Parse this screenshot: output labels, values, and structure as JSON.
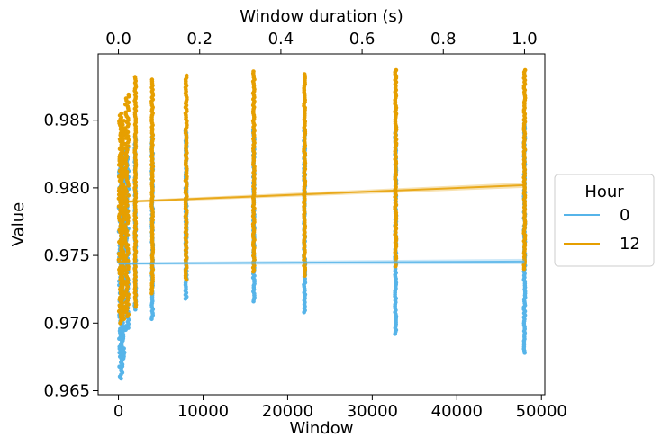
{
  "chart_data": {
    "type": "scatter",
    "title": "",
    "xlabel": "Window",
    "ylabel": "Value",
    "top_xlabel": "Window duration (s)",
    "xlim": [
      -2400,
      50400
    ],
    "ylim": [
      0.9647,
      0.9899
    ],
    "top_xlim": [
      -0.05,
      1.05
    ],
    "x_ticks": [
      0,
      10000,
      20000,
      30000,
      40000,
      50000
    ],
    "x_tick_labels": [
      "0",
      "10000",
      "20000",
      "30000",
      "40000",
      "50000"
    ],
    "y_ticks": [
      0.965,
      0.97,
      0.975,
      0.98,
      0.985
    ],
    "y_tick_labels": [
      "0.965",
      "0.970",
      "0.975",
      "0.980",
      "0.985"
    ],
    "top_ticks": [
      0.0,
      0.2,
      0.4,
      0.6,
      0.8,
      1.0
    ],
    "top_tick_labels": [
      "0.0",
      "0.2",
      "0.4",
      "0.6",
      "0.8",
      "1.0"
    ],
    "grid": false,
    "legend": {
      "title": "Hour",
      "placement": "right-outside",
      "entries": [
        "0",
        "12"
      ]
    },
    "series": [
      {
        "name": "0",
        "color": "#56b4e9",
        "columns": [
          {
            "x": 250,
            "min": 0.9659,
            "max": 0.9822
          },
          {
            "x": 500,
            "min": 0.9668,
            "max": 0.9825
          },
          {
            "x": 1000,
            "min": 0.9695,
            "max": 0.983
          },
          {
            "x": 2000,
            "min": 0.971,
            "max": 0.9838
          },
          {
            "x": 4000,
            "min": 0.9703,
            "max": 0.984
          },
          {
            "x": 8000,
            "min": 0.9718,
            "max": 0.9842
          },
          {
            "x": 16000,
            "min": 0.9716,
            "max": 0.9843
          },
          {
            "x": 22000,
            "min": 0.9708,
            "max": 0.9842
          },
          {
            "x": 32768,
            "min": 0.9692,
            "max": 0.9845
          },
          {
            "x": 48000,
            "min": 0.9678,
            "max": 0.9848
          }
        ],
        "fit": {
          "x": [
            0,
            48000
          ],
          "y": [
            0.9744,
            0.97455
          ]
        }
      },
      {
        "name": "12",
        "color": "#e69f00",
        "columns": [
          {
            "x": 250,
            "min": 0.97,
            "max": 0.9855
          },
          {
            "x": 500,
            "min": 0.9703,
            "max": 0.9851
          },
          {
            "x": 1000,
            "min": 0.9705,
            "max": 0.9869
          },
          {
            "x": 2000,
            "min": 0.9712,
            "max": 0.9882
          },
          {
            "x": 4000,
            "min": 0.9722,
            "max": 0.988
          },
          {
            "x": 8000,
            "min": 0.9732,
            "max": 0.9883
          },
          {
            "x": 16000,
            "min": 0.9738,
            "max": 0.9886
          },
          {
            "x": 22000,
            "min": 0.9735,
            "max": 0.9884
          },
          {
            "x": 32768,
            "min": 0.9742,
            "max": 0.9887
          },
          {
            "x": 48000,
            "min": 0.974,
            "max": 0.9887
          }
        ],
        "fit": {
          "x": [
            0,
            48000
          ],
          "y": [
            0.97895,
            0.9802
          ]
        }
      }
    ]
  }
}
